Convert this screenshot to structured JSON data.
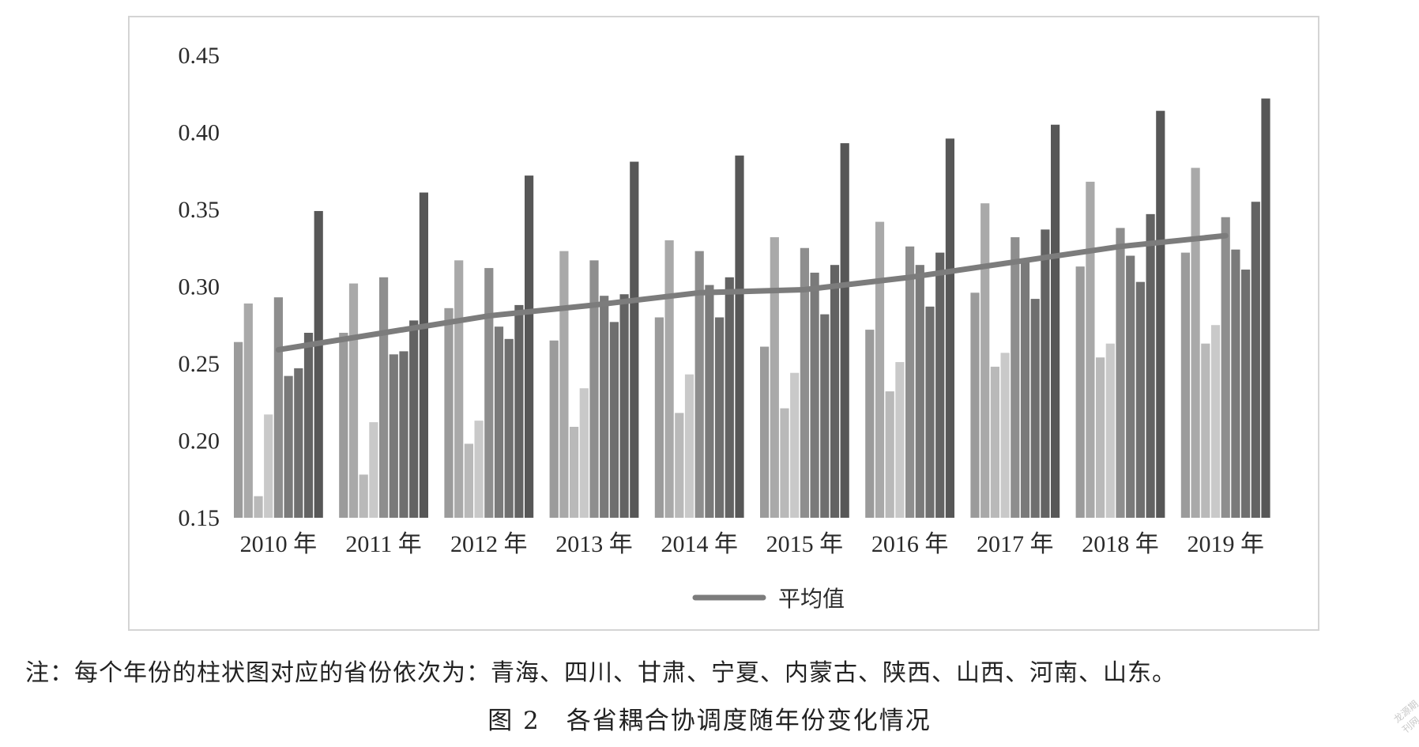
{
  "chart_data": {
    "type": "bar",
    "categories": [
      "2010 年",
      "2011 年",
      "2012 年",
      "2013 年",
      "2014 年",
      "2015 年",
      "2016 年",
      "2017 年",
      "2018 年",
      "2019 年"
    ],
    "series": [
      {
        "values": [
          0.264,
          0.27,
          0.286,
          0.265,
          0.28,
          0.261,
          0.272,
          0.296,
          0.313,
          0.322
        ]
      },
      {
        "values": [
          0.289,
          0.302,
          0.317,
          0.323,
          0.33,
          0.332,
          0.342,
          0.354,
          0.368,
          0.377
        ]
      },
      {
        "values": [
          0.164,
          0.178,
          0.198,
          0.209,
          0.218,
          0.221,
          0.232,
          0.248,
          0.254,
          0.263
        ]
      },
      {
        "values": [
          0.217,
          0.212,
          0.213,
          0.234,
          0.243,
          0.244,
          0.251,
          0.257,
          0.263,
          0.275
        ]
      },
      {
        "values": [
          0.293,
          0.306,
          0.312,
          0.317,
          0.323,
          0.325,
          0.326,
          0.332,
          0.338,
          0.345
        ]
      },
      {
        "values": [
          0.242,
          0.256,
          0.274,
          0.294,
          0.301,
          0.309,
          0.314,
          0.316,
          0.32,
          0.324
        ]
      },
      {
        "values": [
          0.247,
          0.258,
          0.266,
          0.277,
          0.28,
          0.282,
          0.287,
          0.292,
          0.303,
          0.311
        ]
      },
      {
        "values": [
          0.27,
          0.278,
          0.288,
          0.295,
          0.306,
          0.314,
          0.322,
          0.337,
          0.347,
          0.355
        ]
      },
      {
        "values": [
          0.349,
          0.361,
          0.372,
          0.381,
          0.385,
          0.393,
          0.396,
          0.405,
          0.414,
          0.422
        ]
      },
      {
        "name": "平均值",
        "type": "line",
        "values": [
          0.259,
          0.27,
          0.281,
          0.288,
          0.296,
          0.298,
          0.306,
          0.316,
          0.326,
          0.333
        ]
      }
    ],
    "y_ticks": [
      "0.45",
      "0.40",
      "0.35",
      "0.30",
      "0.25",
      "0.20",
      "0.15"
    ],
    "ylim": [
      0.15,
      0.45
    ],
    "grid": false,
    "legend_position": "bottom",
    "colors": {
      "bars": [
        "#9b9b9b",
        "#a9a9a9",
        "#b9b9b9",
        "#c9c9c9",
        "#8e8e8e",
        "#7a7a7a",
        "#6f6f6f",
        "#636363",
        "#575757"
      ],
      "average_line": "#7c7c7c"
    }
  },
  "note": "注：每个年份的柱状图对应的省份依次为：青海、四川、甘肃、宁夏、内蒙古、陕西、山西、河南、山东。",
  "caption": "图 2　各省耦合协调度随年份变化情况",
  "watermark": "龙源期刊网"
}
